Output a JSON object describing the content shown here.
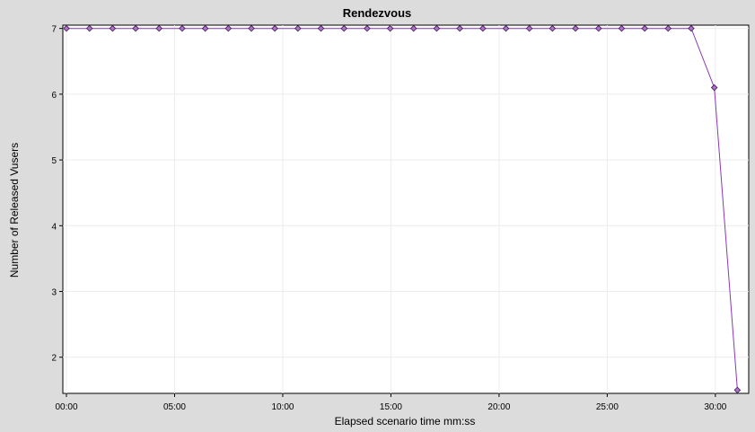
{
  "chart_data": {
    "type": "line",
    "title": "Rendezvous",
    "xlabel": "Elapsed scenario time mm:ss",
    "ylabel": "Number of Released Vusers",
    "x_unit": "mm:ss",
    "xlim": [
      "00:00",
      "31:20"
    ],
    "ylim": [
      1.45,
      7.05
    ],
    "x_ticks": [
      "00:00",
      "05:00",
      "10:00",
      "15:00",
      "20:00",
      "25:00",
      "30:00"
    ],
    "y_ticks": [
      "2",
      "3",
      "4",
      "5",
      "6",
      "7"
    ],
    "grid": true,
    "legend": "none",
    "series": [
      {
        "color": "#8a38b8",
        "marker": "diamond",
        "x": [
          "00:00",
          "01:04",
          "02:08",
          "03:12",
          "04:17",
          "05:21",
          "06:25",
          "07:29",
          "08:33",
          "09:38",
          "10:42",
          "11:46",
          "12:50",
          "13:54",
          "14:58",
          "16:03",
          "17:07",
          "18:11",
          "19:15",
          "20:19",
          "21:24",
          "22:28",
          "23:32",
          "24:36",
          "25:40",
          "26:44",
          "27:49",
          "28:53",
          "29:57",
          "31:01"
        ],
        "y": [
          7,
          7,
          7,
          7,
          7,
          7,
          7,
          7,
          7,
          7,
          7,
          7,
          7,
          7,
          7,
          7,
          7,
          7,
          7,
          7,
          7,
          7,
          7,
          7,
          7,
          7,
          7,
          7,
          6.1,
          1.5
        ]
      }
    ]
  }
}
